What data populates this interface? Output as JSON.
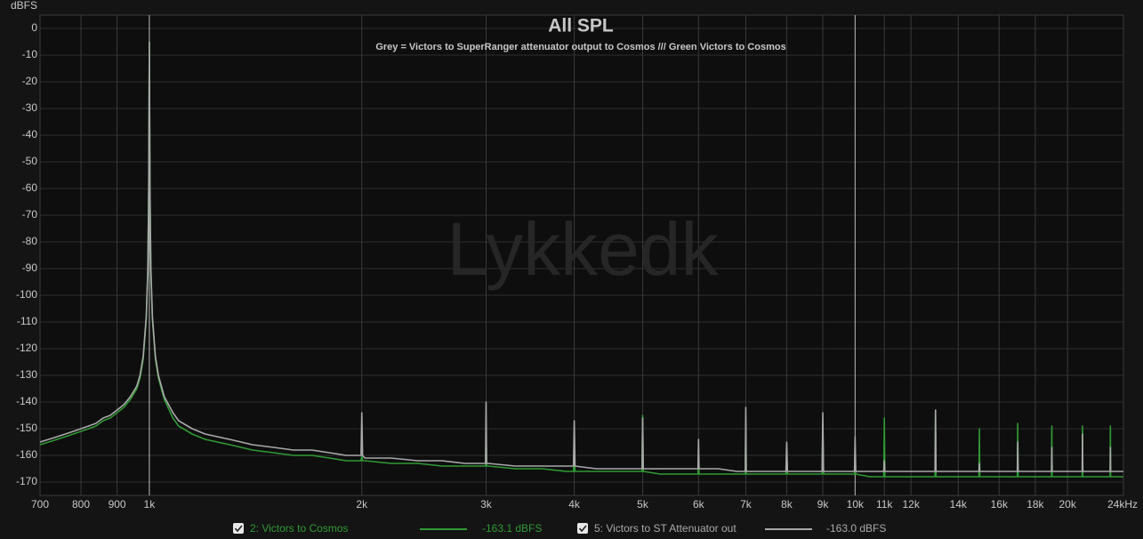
{
  "chart_data": {
    "type": "line",
    "title": "All SPL",
    "subtitle": "Grey = Victors to SuperRanger attenuator output to Cosmos /// Green Victors to Cosmos",
    "watermark": "Lykkedk",
    "ylabel": "dBFS",
    "xscale": "log",
    "grid": true,
    "xlim": [
      700,
      24000
    ],
    "ylim": [
      -175,
      5
    ],
    "xticks": [
      700,
      800,
      900,
      {
        "value": 1000,
        "label": "1k"
      },
      {
        "value": 2000,
        "label": "2k"
      },
      {
        "value": 3000,
        "label": "3k"
      },
      {
        "value": 4000,
        "label": "4k"
      },
      {
        "value": 5000,
        "label": "5k"
      },
      {
        "value": 6000,
        "label": "6k"
      },
      {
        "value": 7000,
        "label": "7k"
      },
      {
        "value": 8000,
        "label": "8k"
      },
      {
        "value": 9000,
        "label": "9k"
      },
      {
        "value": 10000,
        "label": "10k"
      },
      {
        "value": 11000,
        "label": "11k"
      },
      {
        "value": 12000,
        "label": "12k"
      },
      {
        "value": 14000,
        "label": "14k"
      },
      {
        "value": 16000,
        "label": "16k"
      },
      {
        "value": 18000,
        "label": "18k"
      },
      {
        "value": 20000,
        "label": "20k"
      },
      {
        "value": 24000,
        "label": "24kHz"
      }
    ],
    "yticks": [
      0,
      -10,
      -20,
      -30,
      -40,
      -50,
      -60,
      -70,
      -80,
      -90,
      -100,
      -110,
      -120,
      -130,
      -140,
      -150,
      -160,
      -170
    ],
    "x": [
      700,
      720,
      740,
      760,
      780,
      800,
      820,
      840,
      860,
      880,
      900,
      920,
      940,
      960,
      970,
      980,
      990,
      995,
      998,
      1000,
      1002,
      1005,
      1010,
      1020,
      1030,
      1050,
      1080,
      1100,
      1150,
      1200,
      1300,
      1400,
      1500,
      1600,
      1700,
      1800,
      1900,
      1980,
      1995,
      2000,
      2005,
      2020,
      2200,
      2400,
      2600,
      2800,
      2980,
      2995,
      3000,
      3005,
      3020,
      3300,
      3600,
      3900,
      3990,
      4000,
      4010,
      4300,
      4600,
      4900,
      4990,
      5000,
      5010,
      5300,
      5700,
      5990,
      6000,
      6010,
      6400,
      6800,
      6990,
      7000,
      7010,
      7500,
      7980,
      8000,
      8020,
      8500,
      8980,
      9000,
      9020,
      9500,
      9980,
      10000,
      10020,
      10500,
      10980,
      11000,
      11020,
      12000,
      12980,
      13000,
      13020,
      14000,
      14980,
      15000,
      15020,
      16000,
      16980,
      17000,
      17020,
      18000,
      18980,
      19000,
      19020,
      20000,
      20980,
      21000,
      21020,
      22000,
      22980,
      23000,
      23020,
      24000
    ],
    "series": [
      {
        "name": "2: Victors to Cosmos",
        "legend_value": "-163.1 dBFS",
        "color": "#2f9a33",
        "values": [
          -156,
          -155,
          -154,
          -153,
          -152,
          -151,
          -150,
          -149,
          -147,
          -146,
          -144,
          -142,
          -139,
          -135,
          -131,
          -124,
          -109,
          -91,
          -61,
          -5,
          -61,
          -91,
          -109,
          -124,
          -131,
          -139,
          -146,
          -149,
          -152,
          -154,
          -156,
          -158,
          -159,
          -160,
          -160,
          -161,
          -162,
          -162,
          -162,
          -160,
          -162,
          -162,
          -163,
          -163,
          -164,
          -164,
          -164,
          -164,
          -150,
          -164,
          -164,
          -165,
          -165,
          -166,
          -166,
          -158,
          -166,
          -166,
          -166,
          -166,
          -166,
          -145,
          -166,
          -167,
          -167,
          -167,
          -160,
          -167,
          -167,
          -167,
          -167,
          -146,
          -167,
          -167,
          -167,
          -160,
          -167,
          -167,
          -167,
          -148,
          -167,
          -167,
          -167,
          -160,
          -167,
          -168,
          -168,
          -146,
          -168,
          -168,
          -168,
          -143,
          -168,
          -168,
          -168,
          -150,
          -168,
          -168,
          -168,
          -148,
          -168,
          -168,
          -168,
          -149,
          -168,
          -168,
          -168,
          -149,
          -168,
          -168,
          -168,
          -149,
          -168,
          -168
        ]
      },
      {
        "name": "5: Victors to ST Attenuator out",
        "legend_value": "-163.0 dBFS",
        "color": "#a9a9a9",
        "values": [
          -155,
          -154,
          -153,
          -152,
          -151,
          -150,
          -149,
          -148,
          -146,
          -145,
          -143,
          -141,
          -138,
          -134,
          -130,
          -123,
          -108,
          -90,
          -60,
          -5,
          -60,
          -90,
          -108,
          -123,
          -130,
          -138,
          -144,
          -147,
          -150,
          -152,
          -154,
          -156,
          -157,
          -158,
          -158,
          -159,
          -160,
          -160,
          -160,
          -144,
          -160,
          -161,
          -161,
          -162,
          -162,
          -163,
          -163,
          -163,
          -140,
          -163,
          -163,
          -164,
          -164,
          -164,
          -164,
          -147,
          -164,
          -165,
          -165,
          -165,
          -165,
          -146,
          -165,
          -165,
          -165,
          -165,
          -154,
          -165,
          -165,
          -166,
          -166,
          -142,
          -166,
          -166,
          -166,
          -155,
          -166,
          -166,
          -166,
          -144,
          -166,
          -166,
          -166,
          -153,
          -166,
          -166,
          -166,
          -162,
          -166,
          -166,
          -166,
          -143,
          -166,
          -166,
          -166,
          -163,
          -166,
          -166,
          -166,
          -155,
          -166,
          -166,
          -166,
          -157,
          -166,
          -166,
          -166,
          -152,
          -166,
          -166,
          -166,
          -157,
          -166,
          -166
        ]
      }
    ]
  }
}
